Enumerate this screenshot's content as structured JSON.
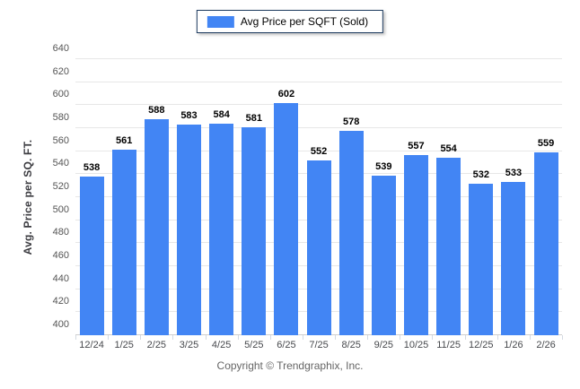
{
  "legend": {
    "label": "Avg Price per SQFT (Sold)"
  },
  "y_axis": {
    "title": "Avg. Price per SQ. FT."
  },
  "footer": {
    "copyright": "Copyright © Trendgraphix, Inc."
  },
  "colors": {
    "bar": "#4285f4",
    "grid": "#e7e7e7",
    "axis_line": "#cfcfcf",
    "boundary_tick": "#d4dae2",
    "y_tick_label": "#555555",
    "x_tick_label": "#47494d",
    "value_label": "#000000",
    "legend_border": "#1c3a5e",
    "footer_text": "#666666"
  },
  "chart_data": {
    "type": "bar",
    "title": "",
    "series_name": "Avg Price per SQFT (Sold)",
    "categories": [
      "12/24",
      "1/25",
      "2/25",
      "3/25",
      "4/25",
      "5/25",
      "6/25",
      "7/25",
      "8/25",
      "9/25",
      "10/25",
      "11/25",
      "12/25",
      "1/26",
      "2/26"
    ],
    "values": [
      538,
      561,
      588,
      583,
      584,
      581,
      602,
      552,
      578,
      539,
      557,
      554,
      532,
      533,
      559
    ],
    "xlabel": "",
    "ylabel": "Avg. Price per SQ. FT.",
    "ylim": [
      400,
      640
    ],
    "ytick_step": 20,
    "grid": true,
    "legend_position": "top",
    "value_labels": true
  }
}
